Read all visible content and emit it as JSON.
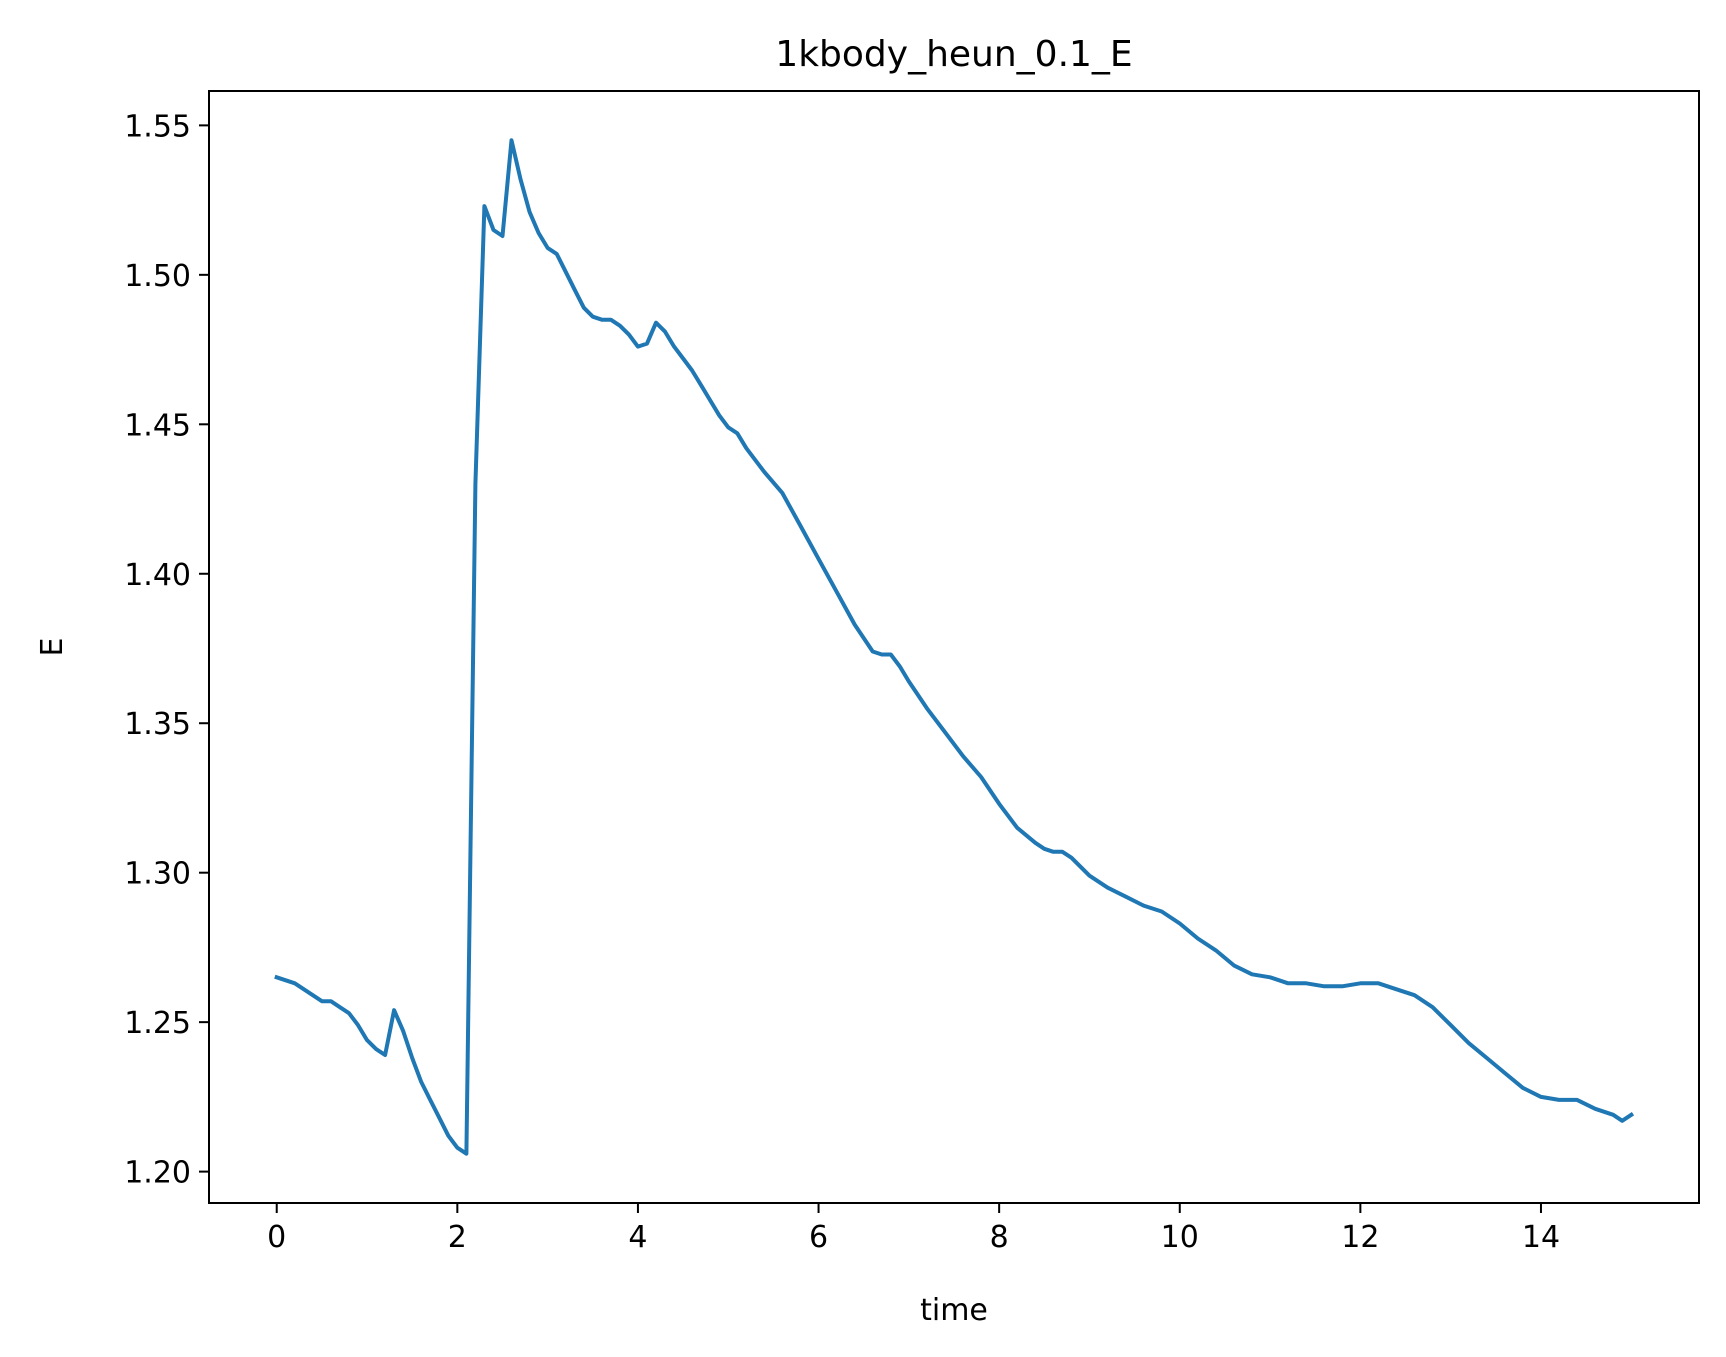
{
  "colors": {
    "line": "#1f77b4",
    "axis": "#000000",
    "background": "#ffffff"
  },
  "chart_data": {
    "type": "line",
    "title": "1kbody_heun_0.1_E",
    "xlabel": "time",
    "ylabel": "E",
    "xlim": [
      -0.75,
      15.75
    ],
    "ylim": [
      1.1895,
      1.5615
    ],
    "xticks": [
      0,
      2,
      4,
      6,
      8,
      10,
      12,
      14
    ],
    "xtick_labels": [
      "0",
      "2",
      "4",
      "6",
      "8",
      "10",
      "12",
      "14"
    ],
    "yticks": [
      1.2,
      1.25,
      1.3,
      1.35,
      1.4,
      1.45,
      1.5,
      1.55
    ],
    "ytick_labels": [
      "1.20",
      "1.25",
      "1.30",
      "1.35",
      "1.40",
      "1.45",
      "1.50",
      "1.55"
    ],
    "grid": false,
    "legend": "none",
    "series": [
      {
        "x": [
          0,
          0.2,
          0.4,
          0.5,
          0.6,
          0.7,
          0.8,
          0.9,
          1.0,
          1.1,
          1.2,
          1.3,
          1.4,
          1.5,
          1.6,
          1.7,
          1.8,
          1.9,
          2.0,
          2.1,
          2.2,
          2.3,
          2.4,
          2.5,
          2.6,
          2.7,
          2.8,
          2.9,
          3.0,
          3.1,
          3.2,
          3.3,
          3.4,
          3.5,
          3.6,
          3.7,
          3.8,
          3.9,
          4.0,
          4.1,
          4.2,
          4.3,
          4.4,
          4.5,
          4.6,
          4.7,
          4.8,
          4.9,
          5.0,
          5.1,
          5.2,
          5.4,
          5.6,
          5.8,
          6.0,
          6.2,
          6.4,
          6.6,
          6.7,
          6.8,
          6.9,
          7.0,
          7.2,
          7.4,
          7.6,
          7.8,
          8.0,
          8.2,
          8.4,
          8.5,
          8.6,
          8.7,
          8.8,
          9.0,
          9.2,
          9.4,
          9.6,
          9.8,
          10.0,
          10.2,
          10.4,
          10.6,
          10.8,
          11.0,
          11.2,
          11.4,
          11.6,
          11.8,
          12.0,
          12.2,
          12.4,
          12.6,
          12.8,
          13.0,
          13.2,
          13.4,
          13.6,
          13.8,
          14.0,
          14.2,
          14.4,
          14.6,
          14.8,
          14.9,
          15.0
        ],
        "y": [
          1.265,
          1.263,
          1.259,
          1.257,
          1.257,
          1.255,
          1.253,
          1.249,
          1.244,
          1.241,
          1.239,
          1.254,
          1.247,
          1.238,
          1.23,
          1.224,
          1.218,
          1.212,
          1.208,
          1.206,
          1.43,
          1.523,
          1.515,
          1.513,
          1.545,
          1.532,
          1.521,
          1.514,
          1.509,
          1.507,
          1.501,
          1.495,
          1.489,
          1.486,
          1.485,
          1.485,
          1.483,
          1.48,
          1.476,
          1.477,
          1.484,
          1.481,
          1.476,
          1.472,
          1.468,
          1.463,
          1.458,
          1.453,
          1.449,
          1.447,
          1.442,
          1.434,
          1.427,
          1.416,
          1.405,
          1.394,
          1.383,
          1.374,
          1.373,
          1.373,
          1.369,
          1.364,
          1.355,
          1.347,
          1.339,
          1.332,
          1.323,
          1.315,
          1.31,
          1.308,
          1.307,
          1.307,
          1.305,
          1.299,
          1.295,
          1.292,
          1.289,
          1.287,
          1.283,
          1.278,
          1.274,
          1.269,
          1.266,
          1.265,
          1.263,
          1.263,
          1.262,
          1.262,
          1.263,
          1.263,
          1.261,
          1.259,
          1.255,
          1.249,
          1.243,
          1.238,
          1.233,
          1.228,
          1.225,
          1.224,
          1.224,
          1.221,
          1.219,
          1.217,
          1.219
        ]
      }
    ]
  }
}
